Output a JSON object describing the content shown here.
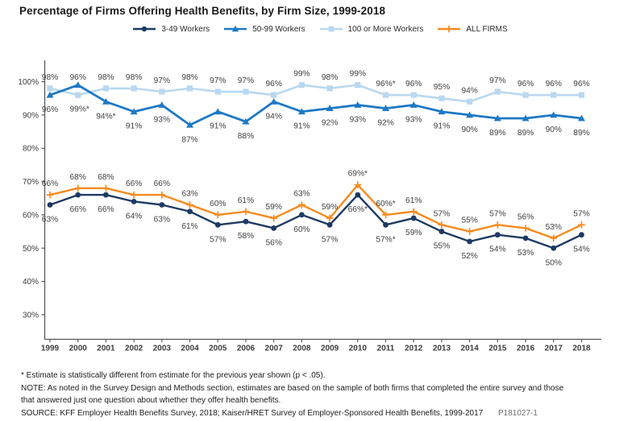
{
  "header": {
    "title": "Percentage of Firms Offering Health Benefits, by Firm Size, 1999-2018"
  },
  "chart_data": {
    "type": "line",
    "title": "Percentage of Firms Offering Health Benefits, by Firm Size, 1999-2018",
    "x": [
      1999,
      2000,
      2001,
      2002,
      2003,
      2004,
      2005,
      2006,
      2007,
      2008,
      2009,
      2010,
      2011,
      2012,
      2013,
      2014,
      2015,
      2016,
      2017,
      2018
    ],
    "x_labels": [
      "1999",
      "2000",
      "2001",
      "2002",
      "2003",
      "2004",
      "2005",
      "2006",
      "2007",
      "2008",
      "2009",
      "2010",
      "2011",
      "2012",
      "2013",
      "2014",
      "2015",
      "2016",
      "2017",
      "2018"
    ],
    "ylim": [
      22,
      106
    ],
    "yticks": [
      100,
      90,
      80,
      70,
      60,
      50,
      40,
      30
    ],
    "ytick_labels": [
      "100%",
      "90%",
      "80%",
      "70%",
      "60%",
      "50%",
      "40%",
      "30%"
    ],
    "grid": false,
    "legend_position": "top-center",
    "draw_order": [
      2,
      1,
      3,
      0
    ],
    "series": [
      {
        "name": "3-49 Workers",
        "color": "#1d3a63",
        "marker": "circle",
        "label_side": "below",
        "values": [
          63,
          66,
          66,
          64,
          63,
          61,
          57,
          58,
          56,
          60,
          57,
          66,
          57,
          59,
          55,
          52,
          54,
          53,
          50,
          54
        ],
        "labels": [
          "63%",
          "66%",
          "66%",
          "64%",
          "63%",
          "61%",
          "57%",
          "58%",
          "56%",
          "60%",
          "57%",
          "66%*",
          "57%*",
          "59%",
          "55%",
          "52%",
          "54%",
          "53%",
          "50%",
          "54%"
        ],
        "label_overrides": {}
      },
      {
        "name": "50-99 Workers",
        "color": "#1e79c4",
        "marker": "triangle",
        "label_side": "below",
        "values": [
          96,
          99,
          94,
          91,
          93,
          87,
          91,
          88,
          94,
          91,
          92,
          93,
          92,
          93,
          91,
          90,
          89,
          89,
          90,
          89
        ],
        "labels": [
          "96%",
          "99%*",
          "94%*",
          "91%",
          "93%",
          "87%",
          "91%",
          "88%",
          "94%",
          "91%",
          "92%",
          "93%",
          "92%",
          "93%",
          "91%",
          "90%",
          "89%",
          "89%",
          "90%",
          "89%"
        ],
        "label_overrides": {
          "1": [
            2,
            12
          ]
        }
      },
      {
        "name": "100 or More Workers",
        "color": "#b9d8f0",
        "marker": "square",
        "label_side": "above",
        "values": [
          98,
          96,
          98,
          98,
          97,
          98,
          97,
          97,
          96,
          99,
          98,
          99,
          96,
          96,
          95,
          94,
          97,
          96,
          96,
          96
        ],
        "labels": [
          "98%",
          "96%",
          "98%",
          "98%",
          "97%",
          "98%",
          "97%",
          "97%",
          "96%",
          "99%",
          "98%",
          "99%",
          "96%*",
          "96%",
          "95%",
          "94%",
          "97%",
          "96%",
          "96%",
          "96%"
        ],
        "label_overrides": {
          "1": [
            0,
            -8
          ]
        }
      },
      {
        "name": "ALL FIRMS",
        "color": "#f68b1f",
        "marker": "plus",
        "label_side": "above",
        "values": [
          66,
          68,
          68,
          66,
          66,
          63,
          60,
          61,
          59,
          63,
          59,
          69,
          60,
          61,
          57,
          55,
          57,
          56,
          53,
          57
        ],
        "labels": [
          "66%",
          "68%",
          "68%",
          "66%",
          "66%",
          "63%",
          "60%",
          "61%",
          "59%",
          "63%",
          "59%",
          "69%*",
          "60%*",
          "61%",
          "57%",
          "55%",
          "57%",
          "56%",
          "53%",
          "57%"
        ],
        "label_overrides": {}
      }
    ]
  },
  "footnotes": {
    "asterisk": "* Estimate is statistically different from estimate for the previous year shown (p < .05).",
    "note_line1": "NOTE: As noted in the Survey Design and Methods section, estimates are based on the sample of both firms that completed the entire survey and those",
    "note_line2": "that answered just one question about whether they offer health benefits.",
    "source": "SOURCE: KFF Employer Health Benefits Survey, 2018; Kaiser/HRET Survey of Employer-Sponsored Health Benefits, 1999-2017",
    "p_number": "P181027-1"
  },
  "colors": {
    "axis": "#58595b",
    "tick_text": "#3c3c3c",
    "data_label": "#404040"
  }
}
